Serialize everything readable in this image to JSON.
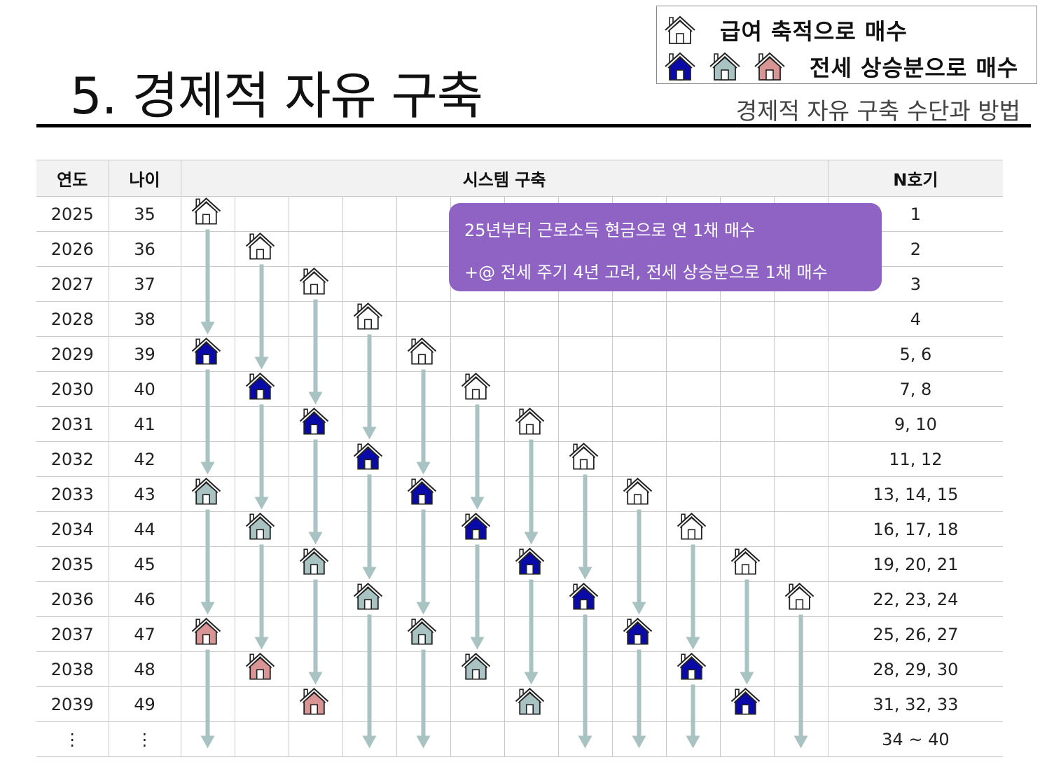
{
  "page": {
    "title": "5. 경제적 자유 구축",
    "subtitle": "경제적 자유 구축 수단과 방법"
  },
  "legend": {
    "salary_label": "급여 축적으로 매수",
    "jeonse_label": "전세 상승분으로 매수",
    "salary_icon": "house-outline-icon",
    "jeonse_icons": [
      "house-blue-icon",
      "house-gray-icon",
      "house-pink-icon"
    ]
  },
  "colors": {
    "blue": "#0a0aa8",
    "gray": "#a9c2c2",
    "pink": "#d99494",
    "outline": "#ffffff",
    "arrow": "#a9c2c2",
    "callout": "#8f63c4"
  },
  "table": {
    "headers": {
      "year": "연도",
      "age": "나이",
      "system": "시스템 구축",
      "count": "N호기"
    },
    "rows": [
      {
        "year": "2025",
        "age": "35",
        "count": "1"
      },
      {
        "year": "2026",
        "age": "36",
        "count": "2"
      },
      {
        "year": "2027",
        "age": "37",
        "count": "3"
      },
      {
        "year": "2028",
        "age": "38",
        "count": "4"
      },
      {
        "year": "2029",
        "age": "39",
        "count": "5, 6"
      },
      {
        "year": "2030",
        "age": "40",
        "count": "7, 8"
      },
      {
        "year": "2031",
        "age": "41",
        "count": "9, 10"
      },
      {
        "year": "2032",
        "age": "42",
        "count": "11, 12"
      },
      {
        "year": "2033",
        "age": "43",
        "count": "13, 14, 15"
      },
      {
        "year": "2034",
        "age": "44",
        "count": "16, 17, 18"
      },
      {
        "year": "2035",
        "age": "45",
        "count": "19, 20, 21"
      },
      {
        "year": "2036",
        "age": "46",
        "count": "22, 23, 24"
      },
      {
        "year": "2037",
        "age": "47",
        "count": "25, 26, 27"
      },
      {
        "year": "2038",
        "age": "48",
        "count": "28, 29, 30"
      },
      {
        "year": "2039",
        "age": "49",
        "count": "31, 32, 33"
      },
      {
        "year": "⋮",
        "age": "⋮",
        "count": "34 ~ 40"
      }
    ]
  },
  "callout": {
    "line1": "25년부터 근로소득 현금으로 연 1채 매수",
    "line2": "+@ 전세 주기 4년 고려, 전세 상승분으로 1채 매수"
  },
  "houses": [
    {
      "col": 0,
      "row": 0,
      "type": "outline"
    },
    {
      "col": 1,
      "row": 1,
      "type": "outline"
    },
    {
      "col": 2,
      "row": 2,
      "type": "outline"
    },
    {
      "col": 3,
      "row": 3,
      "type": "outline"
    },
    {
      "col": 0,
      "row": 4,
      "type": "blue"
    },
    {
      "col": 4,
      "row": 4,
      "type": "outline"
    },
    {
      "col": 1,
      "row": 5,
      "type": "blue"
    },
    {
      "col": 5,
      "row": 5,
      "type": "outline"
    },
    {
      "col": 2,
      "row": 6,
      "type": "blue"
    },
    {
      "col": 6,
      "row": 6,
      "type": "outline"
    },
    {
      "col": 3,
      "row": 7,
      "type": "blue"
    },
    {
      "col": 7,
      "row": 7,
      "type": "outline"
    },
    {
      "col": 0,
      "row": 8,
      "type": "gray"
    },
    {
      "col": 4,
      "row": 8,
      "type": "blue"
    },
    {
      "col": 8,
      "row": 8,
      "type": "outline"
    },
    {
      "col": 1,
      "row": 9,
      "type": "gray"
    },
    {
      "col": 5,
      "row": 9,
      "type": "blue"
    },
    {
      "col": 9,
      "row": 9,
      "type": "outline"
    },
    {
      "col": 2,
      "row": 10,
      "type": "gray"
    },
    {
      "col": 6,
      "row": 10,
      "type": "blue"
    },
    {
      "col": 10,
      "row": 10,
      "type": "outline"
    },
    {
      "col": 3,
      "row": 11,
      "type": "gray"
    },
    {
      "col": 7,
      "row": 11,
      "type": "blue"
    },
    {
      "col": 11,
      "row": 11,
      "type": "outline"
    },
    {
      "col": 0,
      "row": 12,
      "type": "pink"
    },
    {
      "col": 4,
      "row": 12,
      "type": "gray"
    },
    {
      "col": 8,
      "row": 12,
      "type": "blue"
    },
    {
      "col": 1,
      "row": 13,
      "type": "pink"
    },
    {
      "col": 5,
      "row": 13,
      "type": "gray"
    },
    {
      "col": 9,
      "row": 13,
      "type": "blue"
    },
    {
      "col": 2,
      "row": 14,
      "type": "pink"
    },
    {
      "col": 6,
      "row": 14,
      "type": "gray"
    },
    {
      "col": 10,
      "row": 14,
      "type": "blue"
    }
  ],
  "arrows": [
    {
      "col": 0,
      "from": 0,
      "to": 4
    },
    {
      "col": 0,
      "from": 4,
      "to": 8
    },
    {
      "col": 0,
      "from": 8,
      "to": 12
    },
    {
      "col": 0,
      "from": 12,
      "to": 16
    },
    {
      "col": 1,
      "from": 1,
      "to": 5
    },
    {
      "col": 1,
      "from": 5,
      "to": 9
    },
    {
      "col": 1,
      "from": 9,
      "to": 13
    },
    {
      "col": 2,
      "from": 2,
      "to": 6
    },
    {
      "col": 2,
      "from": 6,
      "to": 10
    },
    {
      "col": 2,
      "from": 10,
      "to": 14
    },
    {
      "col": 3,
      "from": 3,
      "to": 7
    },
    {
      "col": 3,
      "from": 7,
      "to": 11
    },
    {
      "col": 3,
      "from": 11,
      "to": 16
    },
    {
      "col": 4,
      "from": 4,
      "to": 8
    },
    {
      "col": 4,
      "from": 8,
      "to": 12
    },
    {
      "col": 4,
      "from": 12,
      "to": 16
    },
    {
      "col": 5,
      "from": 5,
      "to": 9
    },
    {
      "col": 5,
      "from": 9,
      "to": 13
    },
    {
      "col": 6,
      "from": 6,
      "to": 10
    },
    {
      "col": 6,
      "from": 10,
      "to": 14
    },
    {
      "col": 7,
      "from": 7,
      "to": 11
    },
    {
      "col": 7,
      "from": 11,
      "to": 16
    },
    {
      "col": 8,
      "from": 8,
      "to": 12
    },
    {
      "col": 8,
      "from": 12,
      "to": 16
    },
    {
      "col": 9,
      "from": 9,
      "to": 13
    },
    {
      "col": 9,
      "from": 13,
      "to": 16
    },
    {
      "col": 10,
      "from": 10,
      "to": 14
    },
    {
      "col": 11,
      "from": 11,
      "to": 16
    }
  ]
}
